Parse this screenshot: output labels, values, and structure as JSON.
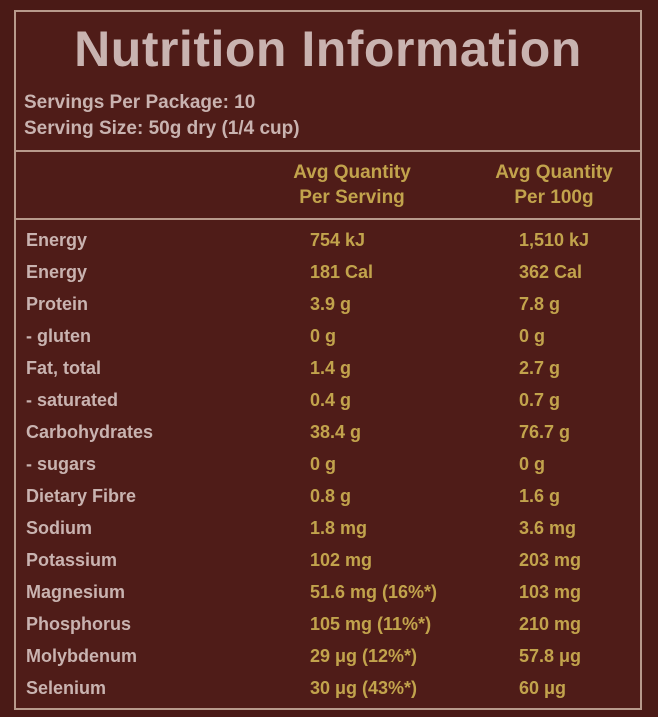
{
  "title": "Nutrition Information",
  "servings_per_package": "Servings Per Package: 10",
  "serving_size": "Serving Size: 50g dry (1/4 cup)",
  "columns": {
    "per_serving_line1": "Avg Quantity",
    "per_serving_line2": "Per Serving",
    "per_100g_line1": "Avg Quantity",
    "per_100g_line2": "Per 100g"
  },
  "rows": [
    {
      "name": "Energy",
      "per_serving": "754 kJ",
      "per_100g": "1,510 kJ"
    },
    {
      "name": "Energy",
      "per_serving": "181 Cal",
      "per_100g": "362 Cal"
    },
    {
      "name": "Protein",
      "per_serving": "3.9 g",
      "per_100g": "7.8 g"
    },
    {
      "name": " - gluten",
      "per_serving": "0 g",
      "per_100g": "0 g"
    },
    {
      "name": "Fat, total",
      "per_serving": "1.4 g",
      "per_100g": "2.7 g"
    },
    {
      "name": " - saturated",
      "per_serving": "0.4 g",
      "per_100g": "0.7 g"
    },
    {
      "name": "Carbohydrates",
      "per_serving": "38.4 g",
      "per_100g": "76.7 g"
    },
    {
      "name": " - sugars",
      "per_serving": "0 g",
      "per_100g": "0 g"
    },
    {
      "name": "Dietary Fibre",
      "per_serving": "0.8 g",
      "per_100g": "1.6 g"
    },
    {
      "name": "Sodium",
      "per_serving": "1.8 mg",
      "per_100g": "3.6 mg"
    },
    {
      "name": "Potassium",
      "per_serving": "102 mg",
      "per_100g": "203 mg"
    },
    {
      "name": "Magnesium",
      "per_serving": "51.6 mg (16%*)",
      "per_100g": "103 mg"
    },
    {
      "name": "Phosphorus",
      "per_serving": "105 mg (11%*)",
      "per_100g": "210 mg"
    },
    {
      "name": "Molybdenum",
      "per_serving": "29 μg (12%*)",
      "per_100g": "57.8 μg"
    },
    {
      "name": "Selenium",
      "per_serving": "30 μg (43%*)",
      "per_100g": "60 μg"
    }
  ],
  "colors": {
    "background": "#4a1a16",
    "label_text": "#c9b3b0",
    "value_text": "#c2a34c",
    "rule": "#b89a8c"
  }
}
